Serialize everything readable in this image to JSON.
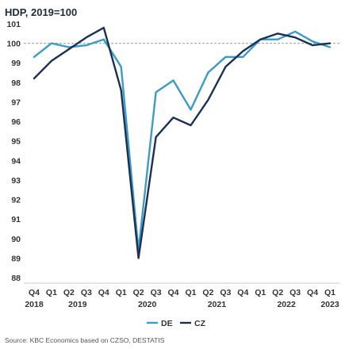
{
  "chart_data": {
    "type": "line",
    "title": "HDP, 2019=100",
    "source": "Source: KBC Economics based on CZSO, DESTATIS",
    "x": [
      "Q4",
      "Q1",
      "Q2",
      "Q3",
      "Q4",
      "Q1",
      "Q2",
      "Q3",
      "Q4",
      "Q1",
      "Q2",
      "Q3",
      "Q4",
      "Q1",
      "Q2",
      "Q3",
      "Q4",
      "Q1"
    ],
    "year_labels": [
      {
        "label": "2018",
        "index": 0
      },
      {
        "label": "2019",
        "index": 2.5
      },
      {
        "label": "2020",
        "index": 6.5
      },
      {
        "label": "2021",
        "index": 10.5
      },
      {
        "label": "2022",
        "index": 14.5
      },
      {
        "label": "2023",
        "index": 17
      }
    ],
    "yticks": [
      88,
      89,
      90,
      91,
      92,
      93,
      94,
      95,
      96,
      97,
      98,
      99,
      100,
      101
    ],
    "ylim": [
      88,
      101
    ],
    "reference_line": 100,
    "series": [
      {
        "name": "DE",
        "color": "#3a9cc4",
        "values": [
          99.3,
          100.0,
          99.8,
          99.9,
          100.2,
          98.8,
          89.4,
          97.5,
          98.1,
          96.6,
          98.5,
          99.3,
          99.3,
          100.2,
          100.2,
          100.6,
          100.1,
          99.8
        ]
      },
      {
        "name": "CZ",
        "color": "#1b2f57",
        "values": [
          98.2,
          99.1,
          99.7,
          100.3,
          100.8,
          97.6,
          89.0,
          95.2,
          96.2,
          95.8,
          97.1,
          98.8,
          99.6,
          100.2,
          100.5,
          100.3,
          99.9,
          100.0
        ]
      }
    ]
  }
}
